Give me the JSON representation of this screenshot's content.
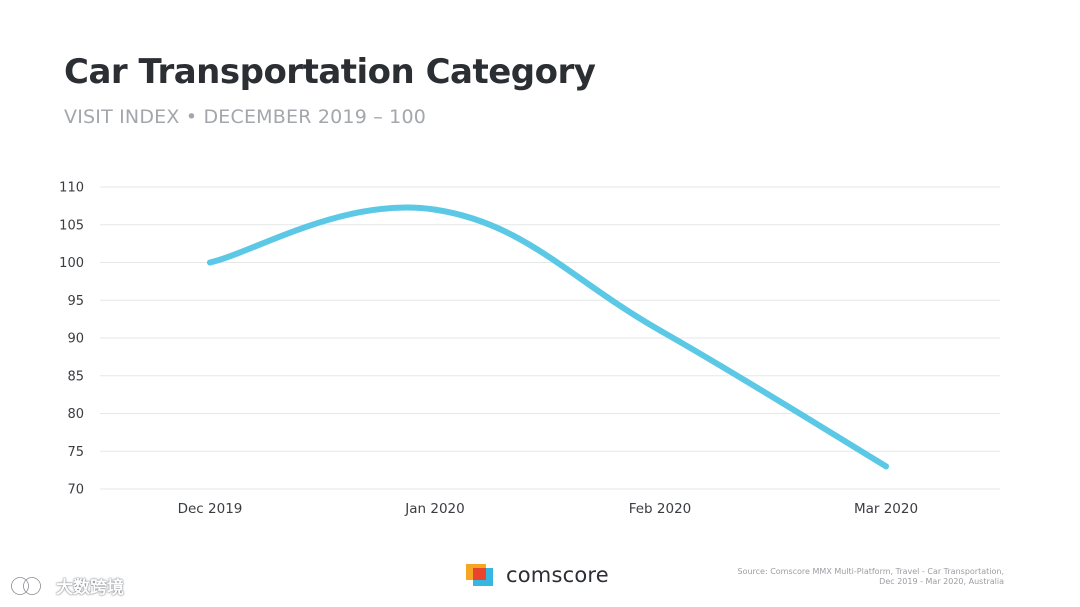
{
  "header": {
    "title": "Car Transportation Category",
    "subtitle": "VISIT INDEX • DECEMBER 2019 – 100"
  },
  "chart_data": {
    "type": "line",
    "title": "Car Transportation Category",
    "subtitle": "VISIT INDEX • DECEMBER 2019 – 100",
    "categories": [
      "Dec 2019",
      "Jan 2020",
      "Feb 2020",
      "Mar 2020"
    ],
    "series": [
      {
        "values": [
          100,
          107,
          91,
          73
        ],
        "color": "#5bc8e6"
      }
    ],
    "ylim": [
      70,
      110
    ],
    "yticks": [
      110,
      105,
      100,
      95,
      90,
      85,
      80,
      75,
      70
    ],
    "grid": true,
    "legend": "none",
    "xlabel": "",
    "ylabel": ""
  },
  "footer": {
    "logo_text": "comscore",
    "source_line1": "Source: Comscore MMX Multi-Platform, Travel - Car Transportation,",
    "source_line2": "Dec 2019 - Mar 2020, Australia",
    "watermark": "大数跨境"
  },
  "colors": {
    "line": "#5bc8e6",
    "grid": "#e6e7e9",
    "logo_orange": "#f5a623",
    "logo_red": "#e8452c",
    "logo_blue": "#36b6e0"
  }
}
